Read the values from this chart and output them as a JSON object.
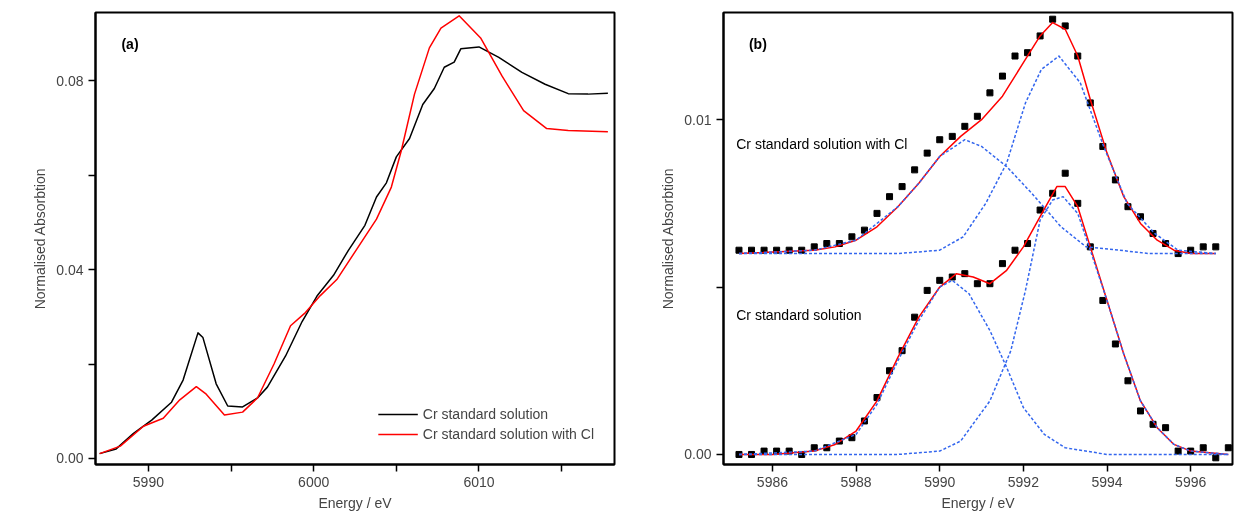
{
  "chart_data": [
    {
      "type": "line",
      "xlabel": "Energy / eV",
      "ylabel": "Normalised Absorbtion",
      "annotations": [
        "(a)"
      ],
      "xlim": [
        5986.8,
        6018.2
      ],
      "ylim": [
        -0.0013,
        0.0945
      ],
      "xticks": [
        5990,
        {
          "value": 5995,
          "label": null
        },
        6000,
        {
          "value": 6005,
          "label": null
        },
        6010,
        {
          "value": 6015,
          "label": null
        }
      ],
      "yticks": [
        {
          "value": 0,
          "label": "0.00"
        },
        {
          "value": 0.02,
          "label": null
        },
        0.04,
        {
          "value": 0.06,
          "label": null
        },
        0.08
      ],
      "legend": "bottom right",
      "line_style": "solid",
      "series": [
        {
          "name": "Cr standard solution",
          "color": "#000000",
          "x": [
            5987.05,
            5988.05,
            5989.1,
            5990.2,
            5991.4,
            5992.1,
            5993.0,
            5993.3,
            5994.1,
            5994.8,
            5995.7,
            5996.6,
            5997.2,
            5998.3,
            5999.3,
            6000.2,
            6001.2,
            6002.1,
            6003.1,
            6003.8,
            6004.4,
            6005.0,
            6005.8,
            6006.6,
            6007.3,
            6007.9,
            6008.5,
            6008.9,
            6010.0,
            6011.2,
            6012.6,
            6014.0,
            6015.4,
            6016.6,
            6017.8
          ],
          "values": [
            0.001,
            0.002,
            0.0053,
            0.0081,
            0.0119,
            0.0166,
            0.0266,
            0.0256,
            0.0158,
            0.0111,
            0.0109,
            0.0128,
            0.0151,
            0.0217,
            0.029,
            0.0344,
            0.0388,
            0.0441,
            0.0494,
            0.0554,
            0.0584,
            0.0639,
            0.0678,
            0.075,
            0.0784,
            0.0829,
            0.084,
            0.0868,
            0.0872,
            0.085,
            0.0818,
            0.0793,
            0.0773,
            0.0772,
            0.0774
          ]
        },
        {
          "name": "Cr standard solution with Cl",
          "color": "#ff0000",
          "x": [
            5987.05,
            5988.3,
            5989.7,
            5990.9,
            5991.9,
            5992.9,
            5993.5,
            5994.6,
            5995.7,
            5996.6,
            5997.6,
            5998.6,
            5999.5,
            6000.4,
            6001.4,
            6002.6,
            6003.8,
            6004.7,
            6005.3,
            6006.1,
            6007.0,
            6007.7,
            6008.8,
            6010.1,
            6011.4,
            6012.7,
            6014.1,
            6015.4,
            6017.8
          ],
          "values": [
            0.001,
            0.0026,
            0.0068,
            0.0085,
            0.0124,
            0.0152,
            0.0136,
            0.0092,
            0.0098,
            0.0128,
            0.02,
            0.0281,
            0.0309,
            0.0345,
            0.0379,
            0.0443,
            0.0507,
            0.0575,
            0.0652,
            0.0772,
            0.087,
            0.0912,
            0.0938,
            0.0891,
            0.081,
            0.0737,
            0.0699,
            0.0695,
            0.0692
          ]
        }
      ]
    },
    {
      "type": "line",
      "xlabel": "Energy / eV",
      "ylabel": "Normalised Absorbtion",
      "xlim": [
        5984.83,
        5997.0
      ],
      "ylim": [
        -0.0003,
        0.0132
      ],
      "annotations": [
        "(b)",
        "Cr standard solution with Cl",
        "Cr standard solution"
      ],
      "xticks": [
        5986,
        5988,
        5990,
        5992,
        5994,
        5996
      ],
      "yticks": [
        {
          "value": 0,
          "label": "0.00"
        },
        {
          "value": 0.005,
          "label": null
        },
        0.01
      ],
      "legend": false,
      "series": [
        {
          "type": "line",
          "color": "#3366ee",
          "line_style": "dashed",
          "x": [
            5985.2,
            5987,
            5988,
            5989,
            5989.5,
            5990,
            5990.6,
            5991,
            5991.6,
            5992.2,
            5992.9,
            5993.5,
            5994.3,
            5995,
            5996.6
          ],
          "values": [
            0.006,
            0.0061,
            0.0064,
            0.0074,
            0.0081,
            0.0089,
            0.0094,
            0.0092,
            0.0086,
            0.0078,
            0.0068,
            0.0062,
            0.0061,
            0.006,
            0.006
          ]
        },
        {
          "type": "line",
          "color": "#3366ee",
          "line_style": "dashed",
          "x": [
            5985.2,
            5989,
            5990,
            5990.56,
            5991.1,
            5991.6,
            5992.05,
            5992.43,
            5992.85,
            5993.36,
            5993.92,
            5994.48,
            5995.14,
            5995.7,
            5996.6
          ],
          "values": [
            0.006,
            0.006,
            0.0061,
            0.0065,
            0.0075,
            0.0087,
            0.0105,
            0.0115,
            0.0119,
            0.0111,
            0.0092,
            0.0075,
            0.0066,
            0.0061,
            0.006
          ]
        },
        {
          "type": "line",
          "color": "#3366ee",
          "line_style": "dashed",
          "x": [
            5985.2,
            5987,
            5988,
            5988.5,
            5989,
            5989.5,
            5990,
            5990.3,
            5990.7,
            5991.2,
            5991.6,
            5992,
            5992.5,
            5993,
            5994,
            5996.9
          ],
          "values": [
            0,
            0.0001,
            0.0006,
            0.0015,
            0.0028,
            0.004,
            0.005,
            0.0052,
            0.0048,
            0.0037,
            0.0026,
            0.0014,
            0.0006,
            0.0002,
            0,
            0
          ]
        },
        {
          "type": "line",
          "color": "#3366ee",
          "line_style": "dashed",
          "x": [
            5985.2,
            5989,
            5990,
            5990.5,
            5991.2,
            5991.7,
            5992.05,
            5992.4,
            5992.7,
            5992.95,
            5993.3,
            5993.6,
            5994,
            5994.4,
            5994.8,
            5995.2,
            5995.6,
            5996,
            5996.9
          ],
          "values": [
            0,
            0,
            0.0001,
            0.0004,
            0.0016,
            0.0031,
            0.0049,
            0.007,
            0.0076,
            0.0077,
            0.0072,
            0.0061,
            0.0046,
            0.003,
            0.0016,
            0.0008,
            0.0003,
            0.0001,
            0
          ]
        },
        {
          "type": "line",
          "color": "#ff0000",
          "line_style": "solid",
          "x": [
            5985.2,
            5987,
            5987.5,
            5988,
            5988.5,
            5989,
            5989.5,
            5990,
            5990.5,
            5991,
            5991.5,
            5992,
            5992.4,
            5992.7,
            5993,
            5993.3,
            5993.6,
            5994,
            5994.4,
            5994.8,
            5995.2,
            5995.6,
            5996,
            5996.6
          ],
          "values": [
            0.006,
            0.0061,
            0.0062,
            0.0064,
            0.0068,
            0.0074,
            0.0081,
            0.0089,
            0.0095,
            0.01,
            0.0107,
            0.0117,
            0.0125,
            0.0129,
            0.0127,
            0.0119,
            0.0106,
            0.009,
            0.0077,
            0.0069,
            0.0064,
            0.0061,
            0.006,
            0.006
          ]
        },
        {
          "type": "line",
          "color": "#ff0000",
          "line_style": "solid",
          "x": [
            5985.2,
            5986,
            5987,
            5987.5,
            5988,
            5988.5,
            5989,
            5989.5,
            5990,
            5990.4,
            5990.8,
            5991.2,
            5991.6,
            5992,
            5992.4,
            5992.8,
            5993,
            5993.3,
            5993.6,
            5994,
            5994.4,
            5994.8,
            5995.2,
            5995.6,
            5996,
            5996.9
          ],
          "values": [
            0,
            0,
            0.0001,
            0.0003,
            0.0007,
            0.0016,
            0.0029,
            0.0041,
            0.005,
            0.0054,
            0.0053,
            0.0051,
            0.0055,
            0.0062,
            0.0071,
            0.008,
            0.008,
            0.0074,
            0.0062,
            0.0046,
            0.003,
            0.0016,
            0.0008,
            0.0003,
            0.0001,
            0
          ]
        },
        {
          "type": "scatter",
          "color": "#000000",
          "marker": "square",
          "x": [
            5985.2,
            5985.5,
            5985.8,
            5986.1,
            5986.4,
            5986.7,
            5987.0,
            5987.3,
            5987.6,
            5987.9,
            5988.2,
            5988.5,
            5988.8,
            5989.1,
            5989.4,
            5989.7,
            5990.0,
            5990.3,
            5990.6,
            5990.9,
            5991.2,
            5991.5,
            5991.8,
            5992.1,
            5992.4,
            5992.7,
            5993.0,
            5993.3,
            5993.6,
            5993.9,
            5994.2,
            5994.5,
            5994.8,
            5995.1,
            5995.4,
            5995.7,
            5996.0,
            5996.3,
            5996.6
          ],
          "values": [
            0.0061,
            0.0061,
            0.0061,
            0.0061,
            0.0061,
            0.0061,
            0.0062,
            0.0063,
            0.0063,
            0.0065,
            0.0067,
            0.0072,
            0.0077,
            0.008,
            0.0085,
            0.009,
            0.0094,
            0.0095,
            0.0098,
            0.0101,
            0.0108,
            0.0113,
            0.0119,
            0.012,
            0.0125,
            0.013,
            0.0128,
            0.0119,
            0.0105,
            0.0092,
            0.0082,
            0.0074,
            0.0071,
            0.0066,
            0.0063,
            0.006,
            0.0061,
            0.0062,
            0.0062
          ]
        },
        {
          "type": "scatter",
          "color": "#000000",
          "marker": "square",
          "x": [
            5985.2,
            5985.5,
            5985.8,
            5986.1,
            5986.4,
            5986.7,
            5987.0,
            5987.3,
            5987.6,
            5987.9,
            5988.2,
            5988.5,
            5988.8,
            5989.1,
            5989.4,
            5989.7,
            5990.0,
            5990.3,
            5990.6,
            5990.9,
            5991.2,
            5991.5,
            5991.8,
            5992.1,
            5992.4,
            5992.7,
            5993.0,
            5993.3,
            5993.6,
            5993.9,
            5994.2,
            5994.5,
            5994.8,
            5995.1,
            5995.4,
            5995.7,
            5996.0,
            5996.3,
            5996.6,
            5996.9
          ],
          "values": [
            0,
            0,
            0.0001,
            0.0001,
            0.0001,
            0,
            0.0002,
            0.0002,
            0.0004,
            0.0005,
            0.001,
            0.0017,
            0.0025,
            0.0031,
            0.0041,
            0.0049,
            0.0052,
            0.0053,
            0.0054,
            0.0051,
            0.0051,
            0.0057,
            0.0061,
            0.0063,
            0.0073,
            0.0078,
            0.0084,
            0.0075,
            0.0062,
            0.0046,
            0.0033,
            0.0022,
            0.0013,
            0.0009,
            0.0008,
            0.0001,
            0.0001,
            0.0002,
            -0.0001,
            0.0002
          ]
        }
      ]
    }
  ]
}
